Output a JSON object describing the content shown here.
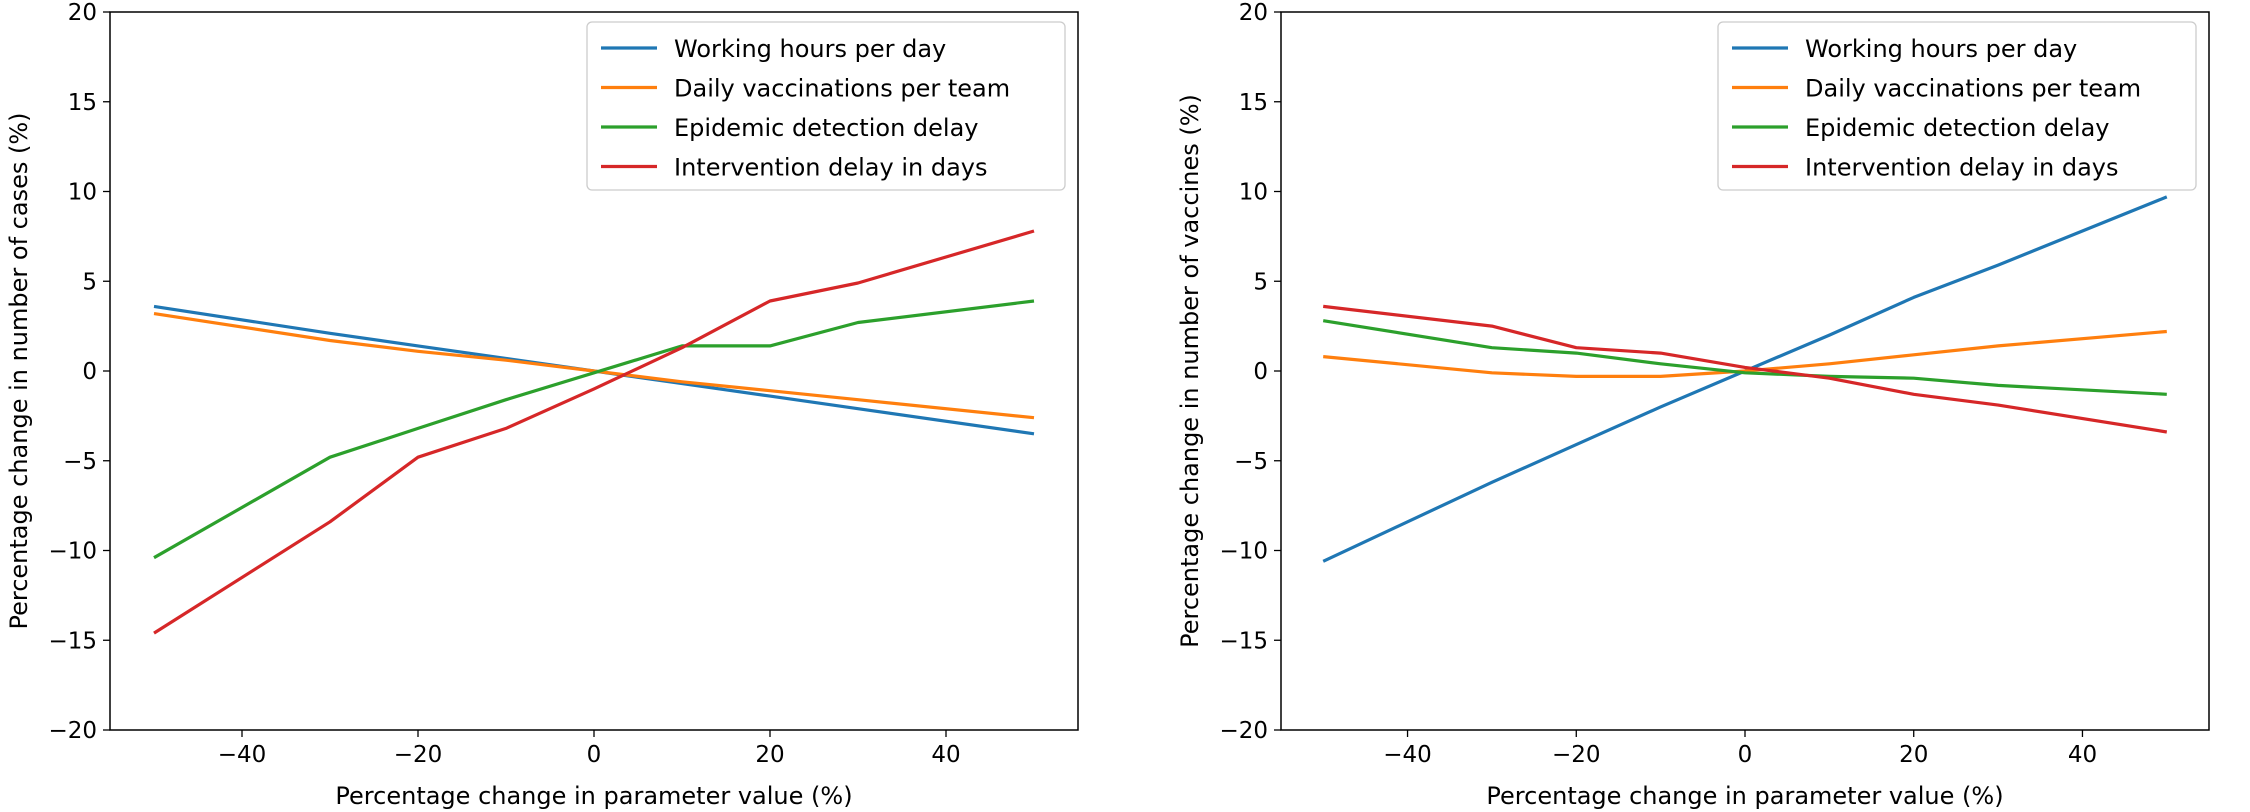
{
  "chart_data": [
    {
      "type": "line",
      "xlabel": "Percentage change in parameter value (%)",
      "ylabel": "Percentage change in number of cases (%)",
      "xlim": [
        -55,
        55
      ],
      "ylim": [
        -20,
        20
      ],
      "xticks": [
        -40,
        -20,
        0,
        20,
        40
      ],
      "yticks": [
        -20,
        -15,
        -10,
        -5,
        0,
        5,
        10,
        15,
        20
      ],
      "xtick_labels": [
        "−40",
        "−20",
        "0",
        "20",
        "40"
      ],
      "ytick_labels": [
        "−20",
        "−15",
        "−10",
        "−5",
        "0",
        "5",
        "10",
        "15",
        "20"
      ],
      "grid": false,
      "legend_position": "top-right",
      "x": [
        -50,
        -30,
        -20,
        -10,
        0,
        10,
        20,
        30,
        50
      ],
      "series": [
        {
          "name": "Working hours per day",
          "color": "#1f77b4",
          "values": [
            3.6,
            2.1,
            1.4,
            0.7,
            0.0,
            -0.7,
            -1.4,
            -2.1,
            -3.5
          ]
        },
        {
          "name": "Daily vaccinations per team",
          "color": "#ff7f0e",
          "values": [
            3.2,
            1.7,
            1.1,
            0.6,
            0.0,
            -0.6,
            -1.1,
            -1.6,
            -2.6
          ]
        },
        {
          "name": "Epidemic detection delay",
          "color": "#2ca02c",
          "values": [
            -10.4,
            -4.8,
            -3.2,
            -1.6,
            -0.1,
            1.4,
            1.4,
            2.7,
            3.9
          ]
        },
        {
          "name": "Intervention delay in days",
          "color": "#d62728",
          "values": [
            -14.6,
            -8.4,
            -4.8,
            -3.2,
            -1.0,
            1.3,
            3.9,
            4.9,
            7.8
          ]
        }
      ]
    },
    {
      "type": "line",
      "xlabel": "Percentage change in parameter value (%)",
      "ylabel": "Percentage change in number of vaccines (%)",
      "xlim": [
        -55,
        55
      ],
      "ylim": [
        -20,
        20
      ],
      "xticks": [
        -40,
        -20,
        0,
        20,
        40
      ],
      "yticks": [
        -20,
        -15,
        -10,
        -5,
        0,
        5,
        10,
        15,
        20
      ],
      "xtick_labels": [
        "−40",
        "−20",
        "0",
        "20",
        "40"
      ],
      "ytick_labels": [
        "−20",
        "−15",
        "−10",
        "−5",
        "0",
        "5",
        "10",
        "15",
        "20"
      ],
      "grid": false,
      "legend_position": "top-right",
      "x": [
        -50,
        -30,
        -20,
        -10,
        0,
        10,
        20,
        30,
        50
      ],
      "series": [
        {
          "name": "Working hours per day",
          "color": "#1f77b4",
          "values": [
            -10.6,
            -6.2,
            -4.1,
            -2.0,
            0.0,
            2.0,
            4.1,
            5.9,
            9.7
          ]
        },
        {
          "name": "Daily vaccinations per team",
          "color": "#ff7f0e",
          "values": [
            0.8,
            -0.1,
            -0.3,
            -0.3,
            0.0,
            0.4,
            0.9,
            1.4,
            2.2
          ]
        },
        {
          "name": "Epidemic detection delay",
          "color": "#2ca02c",
          "values": [
            2.8,
            1.3,
            1.0,
            0.4,
            -0.1,
            -0.3,
            -0.4,
            -0.8,
            -1.3
          ]
        },
        {
          "name": "Intervention delay in days",
          "color": "#d62728",
          "values": [
            3.6,
            2.5,
            1.3,
            1.0,
            0.2,
            -0.4,
            -1.3,
            -1.9,
            -3.4
          ]
        }
      ]
    }
  ]
}
